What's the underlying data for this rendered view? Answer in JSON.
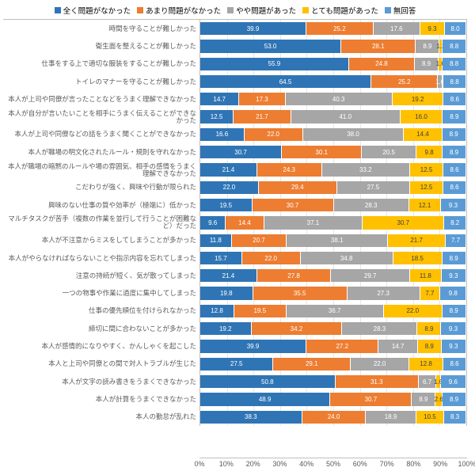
{
  "type": "stacked-bar-horizontal",
  "xlim": [
    0,
    100
  ],
  "xtick_step": 10,
  "xtick_suffix": "%",
  "background_color": "#ffffff",
  "grid_color": "#e6e6e6",
  "label_fontsize": 8.5,
  "value_fontsize": 8,
  "legend_fontsize": 9.5,
  "series": [
    {
      "label": "全く問題がなかった",
      "color": "#2f75b5"
    },
    {
      "label": "あまり問題がなかった",
      "color": "#ed7d31"
    },
    {
      "label": "やや問題があった",
      "color": "#a6a6a6"
    },
    {
      "label": "とても問題があった",
      "color": "#ffc000"
    },
    {
      "label": "無回答",
      "color": "#5b9bd5"
    }
  ],
  "rows": [
    {
      "label": "時間を守ることが難しかった",
      "values": [
        39.9,
        25.2,
        17.6,
        9.3,
        8.0
      ]
    },
    {
      "label": "衛生面を整えることが難しかった",
      "values": [
        53.0,
        28.1,
        8.9,
        1.2,
        8.8
      ]
    },
    {
      "label": "仕事をする上で適切な服装をすることが難しかった",
      "values": [
        55.9,
        24.8,
        8.9,
        1.6,
        8.8
      ]
    },
    {
      "label": "トイレのマナーを守ることが難しかった",
      "values": [
        64.5,
        25.2,
        1.6,
        0.0,
        8.8
      ]
    },
    {
      "label": "本人が上司や同僚が言ったことなどをうまく理解できなかった",
      "values": [
        14.7,
        17.3,
        40.3,
        19.2,
        8.6
      ]
    },
    {
      "label": "本人が自分が言いたいことを相手にうまく伝えることができなかった",
      "values": [
        12.5,
        21.7,
        41.0,
        16.0,
        8.9
      ]
    },
    {
      "label": "本人が上司や同僚などの話をうまく聞くことができなかった",
      "values": [
        16.6,
        22.0,
        38.0,
        14.4,
        8.9
      ]
    },
    {
      "label": "本人が職場の明文化されたルール・規則を守れなかった",
      "values": [
        30.7,
        30.1,
        20.5,
        9.8,
        8.9
      ]
    },
    {
      "label": "本人が職場の暗黙のルールや場の雰囲気、相手の感情をうまく理解できなかった",
      "values": [
        21.4,
        24.3,
        33.2,
        12.5,
        8.6
      ]
    },
    {
      "label": "こだわりが強く、興味や行動が限られた",
      "values": [
        22.0,
        29.4,
        27.5,
        12.5,
        8.6
      ]
    },
    {
      "label": "興味のない仕事の質や効率が（極端に）低かった",
      "values": [
        19.5,
        30.7,
        28.3,
        12.1,
        9.3
      ]
    },
    {
      "label": "マルチタスクが苦手（複数の作業を並行して行うことが困難など）だった",
      "values": [
        9.6,
        14.4,
        37.1,
        30.7,
        8.2
      ]
    },
    {
      "label": "本人が不注意からミスをしてしまうことが多かった",
      "values": [
        11.8,
        20.7,
        38.1,
        21.7,
        7.7
      ]
    },
    {
      "label": "本人がやらなければならないことや指示内容を忘れてしまった",
      "values": [
        15.7,
        22.0,
        34.8,
        18.5,
        8.9
      ]
    },
    {
      "label": "注意の持続が短く、気が散ってしまった",
      "values": [
        21.4,
        27.8,
        29.7,
        11.8,
        9.3
      ]
    },
    {
      "label": "一つの物事や作業に過度に集中してしまった",
      "values": [
        19.8,
        35.5,
        27.3,
        7.7,
        9.8
      ]
    },
    {
      "label": "仕事の優先順位を付けられなかった",
      "values": [
        12.8,
        19.5,
        36.7,
        22.0,
        8.9
      ]
    },
    {
      "label": "締切に間に合わないことが多かった",
      "values": [
        19.2,
        34.2,
        28.3,
        8.9,
        9.3
      ]
    },
    {
      "label": "本人が感情的になりやすく、かんしゃくを起こした",
      "values": [
        39.9,
        27.2,
        14.7,
        8.9,
        9.3
      ]
    },
    {
      "label": "本人と上司や同僚との間で対人トラブルが生じた",
      "values": [
        27.5,
        29.1,
        22.0,
        12.8,
        8.6
      ]
    },
    {
      "label": "本人が文字の読み書きをうまくできなかった",
      "values": [
        50.8,
        31.3,
        6.7,
        1.6,
        9.6
      ]
    },
    {
      "label": "本人が計算をうまくできなかった",
      "values": [
        48.9,
        30.7,
        8.9,
        2.6,
        8.9
      ]
    },
    {
      "label": "本人の勤怠が乱れた",
      "values": [
        38.3,
        24.0,
        18.9,
        10.5,
        8.3
      ]
    }
  ]
}
